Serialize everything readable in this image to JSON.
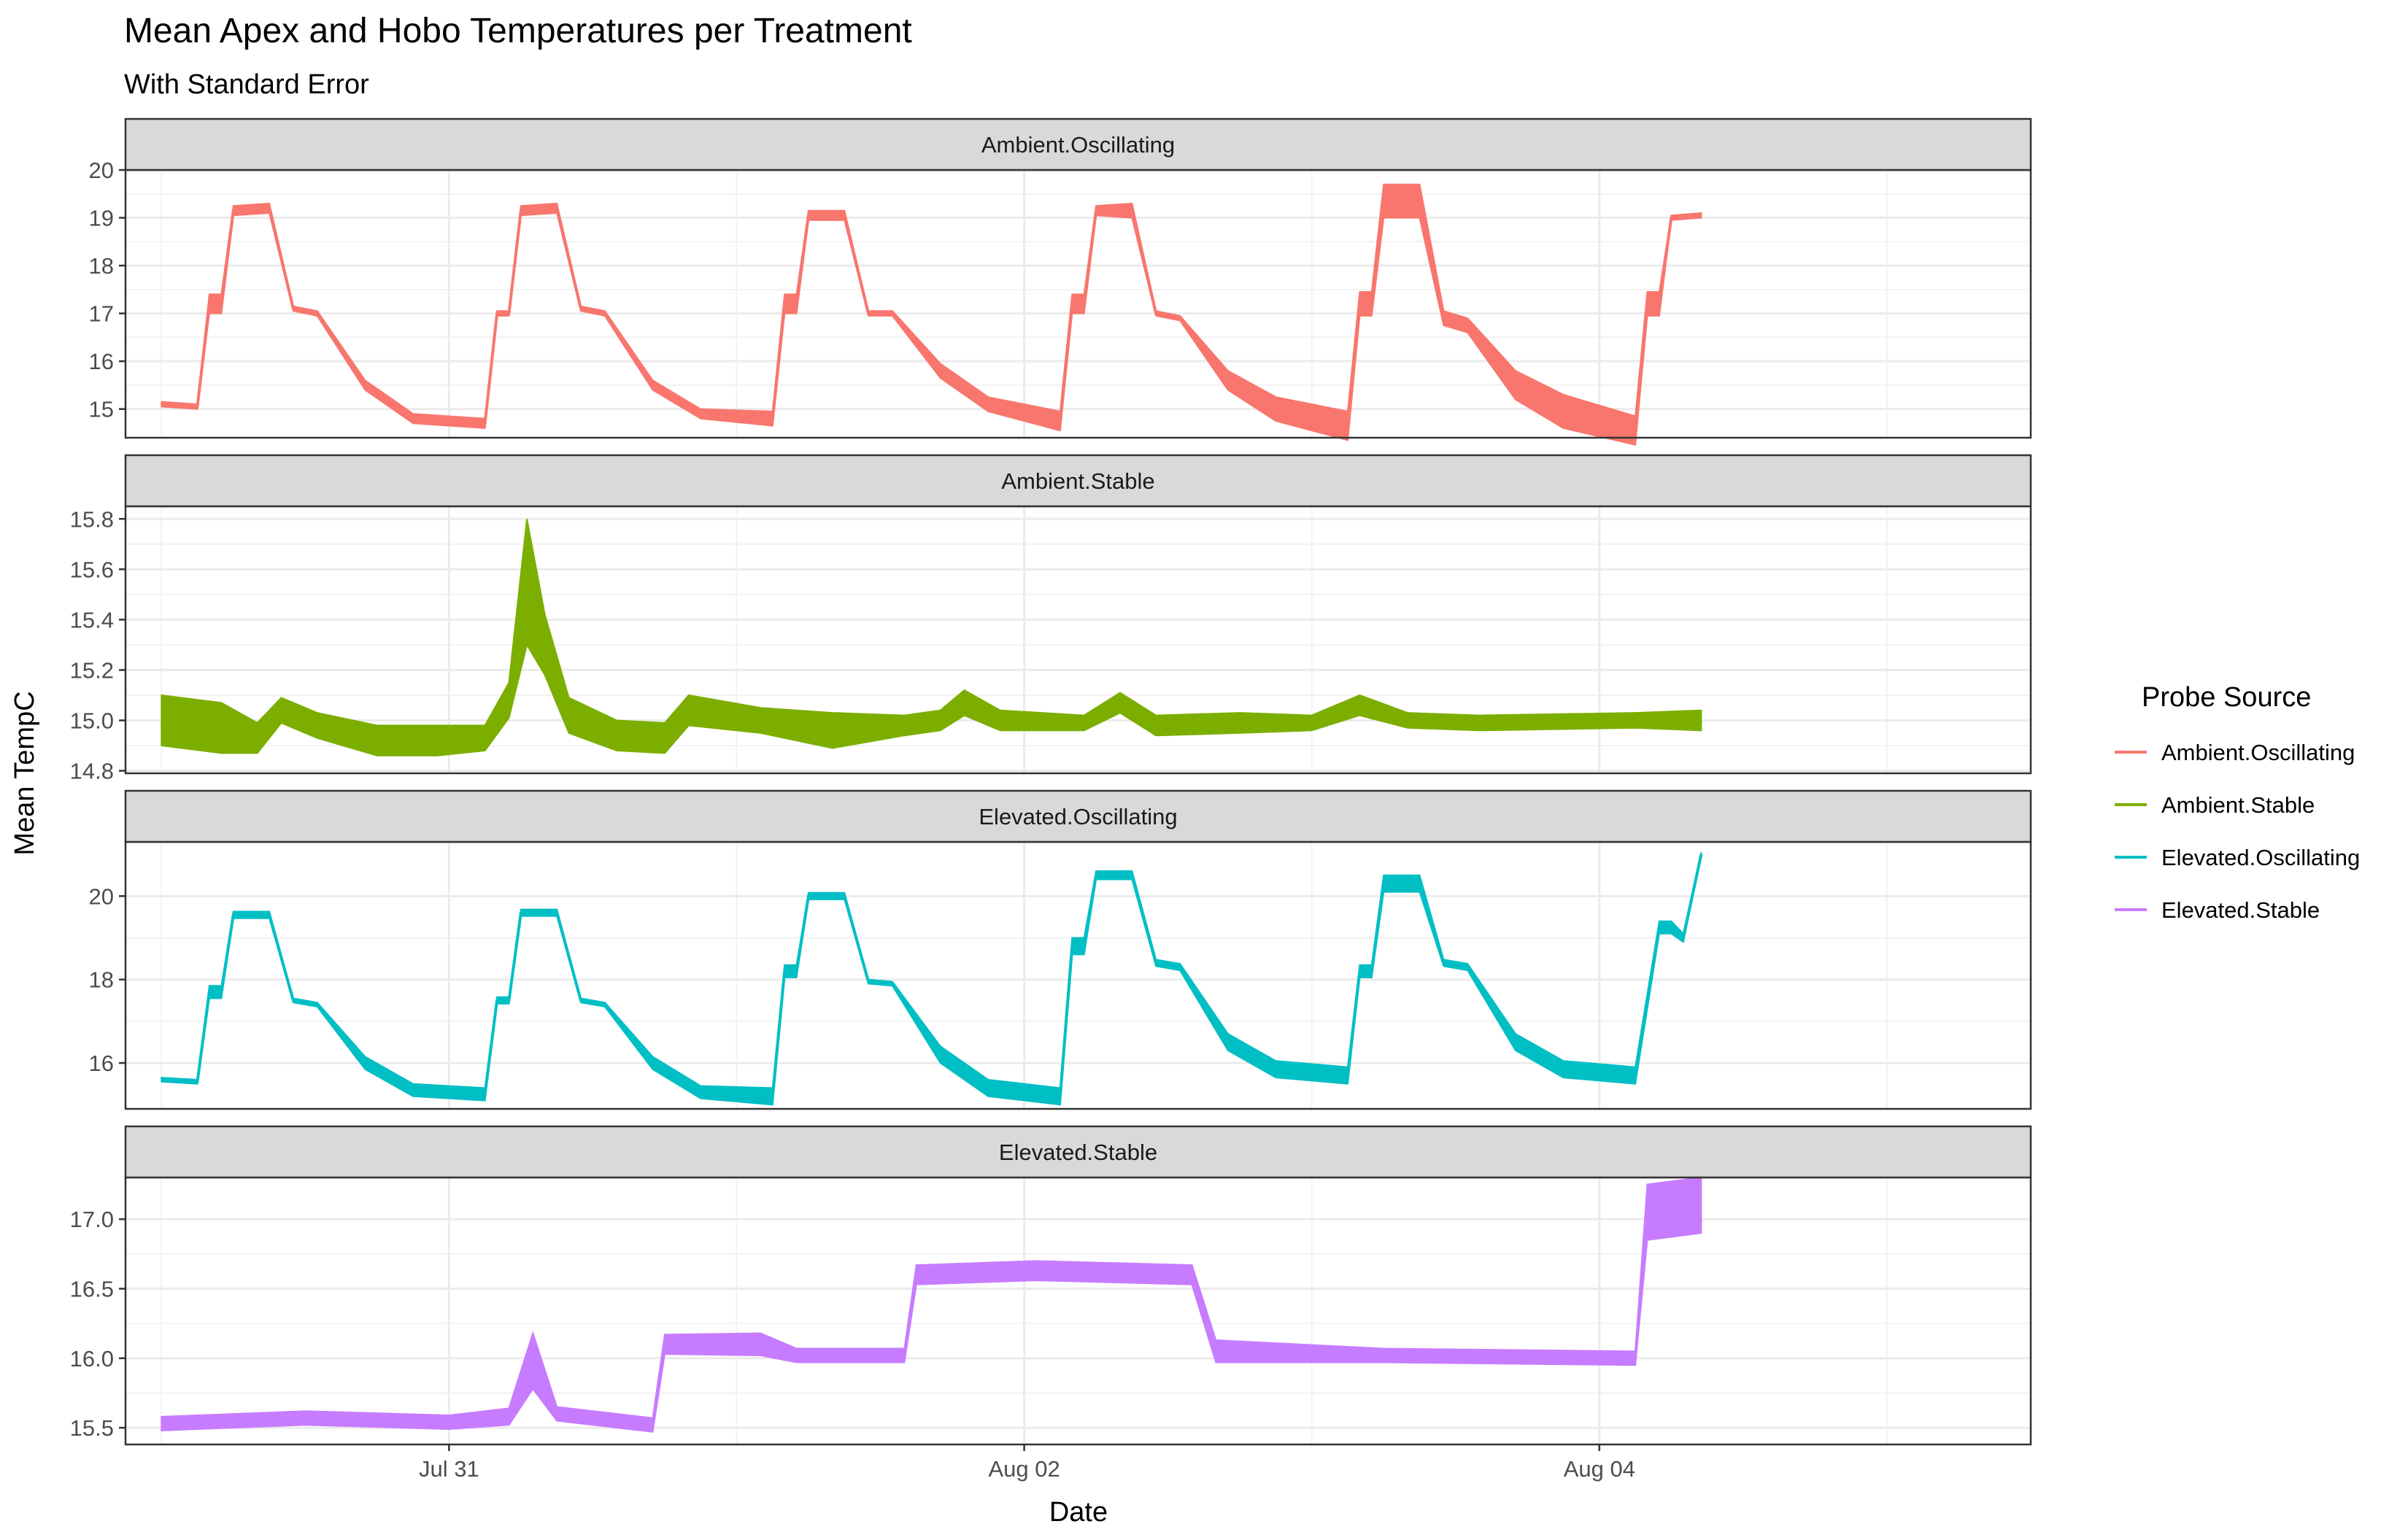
{
  "chart_data": {
    "type": "line",
    "title": "Mean Apex and Hobo Temperatures per Treatment",
    "subtitle": "With Standard Error",
    "xlabel": "Date",
    "ylabel": "Mean TempC",
    "x_ticks": [
      {
        "label": "Jul 31",
        "value": "2021-07-31"
      },
      {
        "label": "Aug 02",
        "value": "2021-08-02"
      },
      {
        "label": "Aug 04",
        "value": "2021-08-04"
      }
    ],
    "xlim": [
      "2021-07-29T21:00",
      "2021-08-05T12:00"
    ],
    "grid": true,
    "legend": {
      "title": "Probe Source",
      "position": "right",
      "entries": [
        "Ambient.Oscillating",
        "Ambient.Stable",
        "Elevated.Oscillating",
        "Elevated.Stable"
      ]
    },
    "colors": [
      "#F8766D",
      "#7CAE00",
      "#00BFC4",
      "#C77CFF"
    ],
    "facets": [
      {
        "name": "Ambient.Oscillating",
        "ylim": [
          14.4,
          20.0
        ],
        "yticks": [
          "15",
          "16",
          "17",
          "18",
          "19",
          "20"
        ],
        "ytick_values": [
          15,
          16,
          17,
          18,
          19,
          20
        ],
        "series": [
          {
            "x": "2021-07-30T00:00",
            "y": 15.1,
            "se": 0.05
          },
          {
            "x": "2021-07-30T03:00",
            "y": 15.05,
            "se": 0.05
          },
          {
            "x": "2021-07-30T04:00",
            "y": 17.2,
            "se": 0.2
          },
          {
            "x": "2021-07-30T05:00",
            "y": 17.2,
            "se": 0.2
          },
          {
            "x": "2021-07-30T06:00",
            "y": 19.15,
            "se": 0.1
          },
          {
            "x": "2021-07-30T09:00",
            "y": 19.2,
            "se": 0.1
          },
          {
            "x": "2021-07-30T11:00",
            "y": 17.1,
            "se": 0.05
          },
          {
            "x": "2021-07-30T13:00",
            "y": 17.0,
            "se": 0.05
          },
          {
            "x": "2021-07-30T17:00",
            "y": 15.5,
            "se": 0.1
          },
          {
            "x": "2021-07-30T21:00",
            "y": 14.8,
            "se": 0.1
          },
          {
            "x": "2021-07-31T03:00",
            "y": 14.7,
            "se": 0.1
          },
          {
            "x": "2021-07-31T04:00",
            "y": 17.0,
            "se": 0.05
          },
          {
            "x": "2021-07-31T05:00",
            "y": 17.0,
            "se": 0.05
          },
          {
            "x": "2021-07-31T06:00",
            "y": 19.15,
            "se": 0.1
          },
          {
            "x": "2021-07-31T09:00",
            "y": 19.2,
            "se": 0.1
          },
          {
            "x": "2021-07-31T11:00",
            "y": 17.1,
            "se": 0.05
          },
          {
            "x": "2021-07-31T13:00",
            "y": 17.0,
            "se": 0.05
          },
          {
            "x": "2021-07-31T17:00",
            "y": 15.5,
            "se": 0.1
          },
          {
            "x": "2021-07-31T21:00",
            "y": 14.9,
            "se": 0.1
          },
          {
            "x": "2021-08-01T03:00",
            "y": 14.8,
            "se": 0.15
          },
          {
            "x": "2021-08-01T04:00",
            "y": 17.2,
            "se": 0.2
          },
          {
            "x": "2021-08-01T05:00",
            "y": 17.2,
            "se": 0.2
          },
          {
            "x": "2021-08-01T06:00",
            "y": 19.05,
            "se": 0.1
          },
          {
            "x": "2021-08-01T09:00",
            "y": 19.05,
            "se": 0.1
          },
          {
            "x": "2021-08-01T11:00",
            "y": 17.0,
            "se": 0.05
          },
          {
            "x": "2021-08-01T13:00",
            "y": 17.0,
            "se": 0.05
          },
          {
            "x": "2021-08-01T17:00",
            "y": 15.8,
            "se": 0.15
          },
          {
            "x": "2021-08-01T21:00",
            "y": 15.1,
            "se": 0.15
          },
          {
            "x": "2021-08-02T03:00",
            "y": 14.75,
            "se": 0.2
          },
          {
            "x": "2021-08-02T04:00",
            "y": 17.2,
            "se": 0.2
          },
          {
            "x": "2021-08-02T05:00",
            "y": 17.2,
            "se": 0.2
          },
          {
            "x": "2021-08-02T06:00",
            "y": 19.15,
            "se": 0.1
          },
          {
            "x": "2021-08-02T09:00",
            "y": 19.15,
            "se": 0.15
          },
          {
            "x": "2021-08-02T11:00",
            "y": 17.0,
            "se": 0.05
          },
          {
            "x": "2021-08-02T13:00",
            "y": 16.9,
            "se": 0.05
          },
          {
            "x": "2021-08-02T17:00",
            "y": 15.6,
            "se": 0.2
          },
          {
            "x": "2021-08-02T21:00",
            "y": 15.0,
            "se": 0.25
          },
          {
            "x": "2021-08-03T03:00",
            "y": 14.65,
            "se": 0.3
          },
          {
            "x": "2021-08-03T04:00",
            "y": 17.2,
            "se": 0.25
          },
          {
            "x": "2021-08-03T05:00",
            "y": 17.2,
            "se": 0.25
          },
          {
            "x": "2021-08-03T06:00",
            "y": 19.35,
            "se": 0.35
          },
          {
            "x": "2021-08-03T09:00",
            "y": 19.35,
            "se": 0.35
          },
          {
            "x": "2021-08-03T11:00",
            "y": 16.9,
            "se": 0.15
          },
          {
            "x": "2021-08-03T13:00",
            "y": 16.75,
            "se": 0.15
          },
          {
            "x": "2021-08-03T17:00",
            "y": 15.5,
            "se": 0.3
          },
          {
            "x": "2021-08-03T21:00",
            "y": 14.95,
            "se": 0.35
          },
          {
            "x": "2021-08-04T03:00",
            "y": 14.55,
            "se": 0.3
          },
          {
            "x": "2021-08-04T04:00",
            "y": 17.2,
            "se": 0.25
          },
          {
            "x": "2021-08-04T05:00",
            "y": 17.2,
            "se": 0.25
          },
          {
            "x": "2021-08-04T06:00",
            "y": 19.0,
            "se": 0.05
          },
          {
            "x": "2021-08-04T08:30",
            "y": 19.05,
            "se": 0.05
          }
        ]
      },
      {
        "name": "Ambient.Stable",
        "ylim": [
          14.79,
          15.85
        ],
        "yticks": [
          "14.8",
          "15.0",
          "15.2",
          "15.4",
          "15.6",
          "15.8"
        ],
        "ytick_values": [
          14.8,
          15.0,
          15.2,
          15.4,
          15.6,
          15.8
        ],
        "series": [
          {
            "x": "2021-07-30T00:00",
            "y": 15.0,
            "se": 0.1
          },
          {
            "x": "2021-07-30T05:00",
            "y": 14.97,
            "se": 0.1
          },
          {
            "x": "2021-07-30T08:00",
            "y": 14.93,
            "se": 0.06
          },
          {
            "x": "2021-07-30T10:00",
            "y": 15.04,
            "se": 0.05
          },
          {
            "x": "2021-07-30T13:00",
            "y": 14.98,
            "se": 0.05
          },
          {
            "x": "2021-07-30T18:00",
            "y": 14.92,
            "se": 0.06
          },
          {
            "x": "2021-07-30T23:00",
            "y": 14.92,
            "se": 0.06
          },
          {
            "x": "2021-07-31T03:00",
            "y": 14.93,
            "se": 0.05
          },
          {
            "x": "2021-07-31T05:00",
            "y": 15.08,
            "se": 0.07
          },
          {
            "x": "2021-07-31T06:30",
            "y": 15.55,
            "se": 0.25
          },
          {
            "x": "2021-07-31T08:00",
            "y": 15.3,
            "se": 0.12
          },
          {
            "x": "2021-07-31T10:00",
            "y": 15.02,
            "se": 0.07
          },
          {
            "x": "2021-07-31T14:00",
            "y": 14.94,
            "se": 0.06
          },
          {
            "x": "2021-07-31T18:00",
            "y": 14.93,
            "se": 0.06
          },
          {
            "x": "2021-07-31T20:00",
            "y": 15.04,
            "se": 0.06
          },
          {
            "x": "2021-08-01T02:00",
            "y": 15.0,
            "se": 0.05
          },
          {
            "x": "2021-08-01T08:00",
            "y": 14.96,
            "se": 0.07
          },
          {
            "x": "2021-08-01T14:00",
            "y": 14.98,
            "se": 0.04
          },
          {
            "x": "2021-08-01T17:00",
            "y": 15.0,
            "se": 0.04
          },
          {
            "x": "2021-08-01T19:00",
            "y": 15.07,
            "se": 0.05
          },
          {
            "x": "2021-08-01T22:00",
            "y": 15.0,
            "se": 0.04
          },
          {
            "x": "2021-08-02T05:00",
            "y": 14.99,
            "se": 0.03
          },
          {
            "x": "2021-08-02T08:00",
            "y": 15.07,
            "se": 0.04
          },
          {
            "x": "2021-08-02T11:00",
            "y": 14.98,
            "se": 0.04
          },
          {
            "x": "2021-08-02T18:00",
            "y": 14.99,
            "se": 0.04
          },
          {
            "x": "2021-08-03T00:00",
            "y": 14.99,
            "se": 0.03
          },
          {
            "x": "2021-08-03T04:00",
            "y": 15.06,
            "se": 0.04
          },
          {
            "x": "2021-08-03T08:00",
            "y": 15.0,
            "se": 0.03
          },
          {
            "x": "2021-08-03T14:00",
            "y": 14.99,
            "se": 0.03
          },
          {
            "x": "2021-08-04T03:00",
            "y": 15.0,
            "se": 0.03
          },
          {
            "x": "2021-08-04T08:30",
            "y": 15.0,
            "se": 0.04
          }
        ]
      },
      {
        "name": "Elevated.Oscillating",
        "ylim": [
          14.9,
          21.3
        ],
        "yticks": [
          "16",
          "18",
          "20"
        ],
        "ytick_values": [
          16,
          18,
          20
        ],
        "series": [
          {
            "x": "2021-07-30T00:00",
            "y": 15.6,
            "se": 0.05
          },
          {
            "x": "2021-07-30T03:00",
            "y": 15.55,
            "se": 0.05
          },
          {
            "x": "2021-07-30T04:00",
            "y": 17.7,
            "se": 0.15
          },
          {
            "x": "2021-07-30T05:00",
            "y": 17.7,
            "se": 0.15
          },
          {
            "x": "2021-07-30T06:00",
            "y": 19.55,
            "se": 0.08
          },
          {
            "x": "2021-07-30T09:00",
            "y": 19.55,
            "se": 0.08
          },
          {
            "x": "2021-07-30T11:00",
            "y": 17.5,
            "se": 0.05
          },
          {
            "x": "2021-07-30T13:00",
            "y": 17.4,
            "se": 0.05
          },
          {
            "x": "2021-07-30T17:00",
            "y": 16.0,
            "se": 0.15
          },
          {
            "x": "2021-07-30T21:00",
            "y": 15.35,
            "se": 0.15
          },
          {
            "x": "2021-07-31T03:00",
            "y": 15.25,
            "se": 0.15
          },
          {
            "x": "2021-07-31T04:00",
            "y": 17.5,
            "se": 0.08
          },
          {
            "x": "2021-07-31T05:00",
            "y": 17.5,
            "se": 0.08
          },
          {
            "x": "2021-07-31T06:00",
            "y": 19.6,
            "se": 0.08
          },
          {
            "x": "2021-07-31T09:00",
            "y": 19.6,
            "se": 0.08
          },
          {
            "x": "2021-07-31T11:00",
            "y": 17.5,
            "se": 0.05
          },
          {
            "x": "2021-07-31T13:00",
            "y": 17.4,
            "se": 0.05
          },
          {
            "x": "2021-07-31T17:00",
            "y": 16.0,
            "se": 0.15
          },
          {
            "x": "2021-07-31T21:00",
            "y": 15.3,
            "se": 0.15
          },
          {
            "x": "2021-08-01T03:00",
            "y": 15.2,
            "se": 0.2
          },
          {
            "x": "2021-08-01T04:00",
            "y": 18.2,
            "se": 0.15
          },
          {
            "x": "2021-08-01T05:00",
            "y": 18.2,
            "se": 0.15
          },
          {
            "x": "2021-08-01T06:00",
            "y": 20.0,
            "se": 0.08
          },
          {
            "x": "2021-08-01T09:00",
            "y": 20.0,
            "se": 0.08
          },
          {
            "x": "2021-08-01T11:00",
            "y": 17.95,
            "se": 0.05
          },
          {
            "x": "2021-08-01T13:00",
            "y": 17.9,
            "se": 0.05
          },
          {
            "x": "2021-08-01T17:00",
            "y": 16.2,
            "se": 0.2
          },
          {
            "x": "2021-08-01T21:00",
            "y": 15.4,
            "se": 0.2
          },
          {
            "x": "2021-08-02T03:00",
            "y": 15.2,
            "se": 0.2
          },
          {
            "x": "2021-08-02T04:00",
            "y": 18.8,
            "se": 0.2
          },
          {
            "x": "2021-08-02T05:00",
            "y": 18.8,
            "se": 0.2
          },
          {
            "x": "2021-08-02T06:00",
            "y": 20.5,
            "se": 0.1
          },
          {
            "x": "2021-08-02T09:00",
            "y": 20.5,
            "se": 0.1
          },
          {
            "x": "2021-08-02T11:00",
            "y": 18.4,
            "se": 0.08
          },
          {
            "x": "2021-08-02T13:00",
            "y": 18.3,
            "se": 0.08
          },
          {
            "x": "2021-08-02T17:00",
            "y": 16.5,
            "se": 0.2
          },
          {
            "x": "2021-08-02T21:00",
            "y": 15.85,
            "se": 0.2
          },
          {
            "x": "2021-08-03T03:00",
            "y": 15.7,
            "se": 0.2
          },
          {
            "x": "2021-08-03T04:00",
            "y": 18.2,
            "se": 0.15
          },
          {
            "x": "2021-08-03T05:00",
            "y": 18.2,
            "se": 0.15
          },
          {
            "x": "2021-08-03T06:00",
            "y": 20.3,
            "se": 0.2
          },
          {
            "x": "2021-08-03T09:00",
            "y": 20.3,
            "se": 0.2
          },
          {
            "x": "2021-08-03T11:00",
            "y": 18.4,
            "se": 0.08
          },
          {
            "x": "2021-08-03T13:00",
            "y": 18.3,
            "se": 0.08
          },
          {
            "x": "2021-08-03T17:00",
            "y": 16.5,
            "se": 0.2
          },
          {
            "x": "2021-08-03T21:00",
            "y": 15.85,
            "se": 0.2
          },
          {
            "x": "2021-08-04T03:00",
            "y": 15.7,
            "se": 0.2
          },
          {
            "x": "2021-08-04T05:00",
            "y": 19.25,
            "se": 0.15
          },
          {
            "x": "2021-08-04T06:00",
            "y": 19.25,
            "se": 0.15
          },
          {
            "x": "2021-08-04T07:00",
            "y": 19.0,
            "se": 0.1
          },
          {
            "x": "2021-08-04T08:30",
            "y": 21.0,
            "se": 0.05
          }
        ]
      },
      {
        "name": "Elevated.Stable",
        "ylim": [
          15.38,
          17.3
        ],
        "yticks": [
          "15.5",
          "16.0",
          "16.5",
          "17.0"
        ],
        "ytick_values": [
          15.5,
          16.0,
          16.5,
          17.0
        ],
        "series": [
          {
            "x": "2021-07-30T00:00",
            "y": 15.53,
            "se": 0.05
          },
          {
            "x": "2021-07-30T12:00",
            "y": 15.57,
            "se": 0.05
          },
          {
            "x": "2021-07-31T00:00",
            "y": 15.54,
            "se": 0.05
          },
          {
            "x": "2021-07-31T05:00",
            "y": 15.58,
            "se": 0.06
          },
          {
            "x": "2021-07-31T07:00",
            "y": 15.98,
            "se": 0.2
          },
          {
            "x": "2021-07-31T09:00",
            "y": 15.6,
            "se": 0.05
          },
          {
            "x": "2021-07-31T17:00",
            "y": 15.52,
            "se": 0.05
          },
          {
            "x": "2021-07-31T18:00",
            "y": 16.1,
            "se": 0.07
          },
          {
            "x": "2021-08-01T02:00",
            "y": 16.1,
            "se": 0.08
          },
          {
            "x": "2021-08-01T05:00",
            "y": 16.02,
            "se": 0.05
          },
          {
            "x": "2021-08-01T14:00",
            "y": 16.02,
            "se": 0.05
          },
          {
            "x": "2021-08-01T15:00",
            "y": 16.6,
            "se": 0.07
          },
          {
            "x": "2021-08-02T01:00",
            "y": 16.63,
            "se": 0.07
          },
          {
            "x": "2021-08-02T14:00",
            "y": 16.6,
            "se": 0.07
          },
          {
            "x": "2021-08-02T16:00",
            "y": 16.05,
            "se": 0.08
          },
          {
            "x": "2021-08-03T06:00",
            "y": 16.02,
            "se": 0.05
          },
          {
            "x": "2021-08-04T03:00",
            "y": 16.0,
            "se": 0.05
          },
          {
            "x": "2021-08-04T04:00",
            "y": 17.05,
            "se": 0.2
          },
          {
            "x": "2021-08-04T08:30",
            "y": 17.1,
            "se": 0.2
          }
        ]
      }
    ]
  }
}
